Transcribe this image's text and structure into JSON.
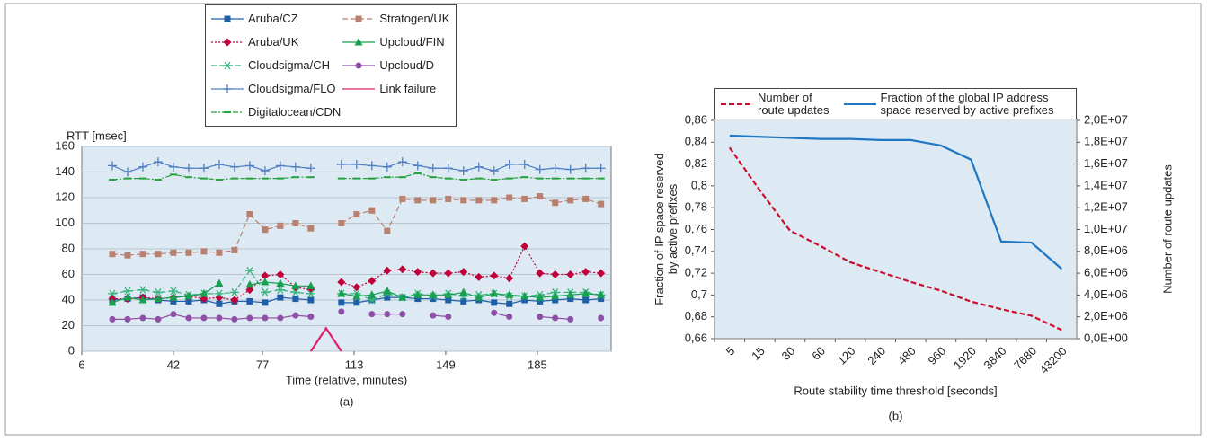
{
  "chart_data": [
    {
      "type": "line",
      "y_label": "RTT [msec]",
      "x_label": "Time (relative, minutes)",
      "caption": "(a)",
      "x": [
        18,
        24,
        30,
        36,
        42,
        48,
        54,
        60,
        66,
        72,
        78,
        84,
        90,
        96,
        102,
        108,
        114,
        120,
        126,
        132,
        138,
        144,
        150,
        156,
        162,
        168,
        174,
        180,
        186,
        192,
        198,
        204,
        210
      ],
      "xlim": [
        6,
        214
      ],
      "xticks": [
        6,
        42,
        77,
        113,
        149,
        185
      ],
      "ylim": [
        0,
        160
      ],
      "yticks": [
        0,
        20,
        40,
        60,
        80,
        100,
        120,
        140,
        160
      ],
      "grid": true,
      "series": [
        {
          "name": "Aruba/CZ",
          "color": "#1f5fa8",
          "marker": "square",
          "dash": "solid",
          "values": [
            40,
            41,
            42,
            40,
            39,
            39,
            40,
            37,
            39,
            39,
            38,
            42,
            41,
            40,
            null,
            38,
            38,
            40,
            42,
            42,
            41,
            41,
            40,
            39,
            40,
            38,
            37,
            40,
            39,
            40,
            41,
            40,
            41
          ]
        },
        {
          "name": "Aruba/UK",
          "color": "#c0003a",
          "marker": "diamond",
          "dash": "dotted",
          "values": [
            41,
            41,
            42,
            41,
            42,
            43,
            41,
            42,
            40,
            48,
            59,
            60,
            50,
            48,
            null,
            54,
            50,
            55,
            63,
            64,
            62,
            61,
            61,
            62,
            58,
            59,
            57,
            82,
            61,
            60,
            60,
            62,
            61
          ]
        },
        {
          "name": "Cloudsigma/CH",
          "color": "#3ab57e",
          "marker": "asterisk",
          "dash": "dashed",
          "values": [
            45,
            47,
            48,
            46,
            47,
            44,
            45,
            45,
            46,
            63,
            46,
            48,
            46,
            45,
            null,
            45,
            45,
            40,
            45,
            42,
            45,
            43,
            45,
            43,
            44,
            45,
            43,
            43,
            44,
            46,
            46,
            46,
            44
          ]
        },
        {
          "name": "Cloudsigma/FLO",
          "color": "#4f7fc0",
          "marker": "plus",
          "dash": "solid",
          "values": [
            145,
            140,
            144,
            148,
            144,
            143,
            143,
            146,
            144,
            145,
            141,
            145,
            144,
            143,
            null,
            146,
            146,
            145,
            144,
            148,
            145,
            143,
            143,
            141,
            144,
            141,
            146,
            146,
            142,
            143,
            142,
            143,
            143
          ]
        },
        {
          "name": "Digitalocean/CDN",
          "color": "#22a23a",
          "marker": "dash",
          "dash": "dashdot",
          "values": [
            134,
            135,
            135,
            134,
            138,
            136,
            135,
            134,
            135,
            135,
            135,
            135,
            136,
            136,
            null,
            135,
            135,
            135,
            136,
            136,
            139,
            136,
            135,
            134,
            135,
            134,
            135,
            136,
            135,
            135,
            135,
            135,
            135
          ]
        },
        {
          "name": "Stratogen/UK",
          "color": "#b98070",
          "marker": "square",
          "dash": "dashed",
          "values": [
            76,
            75,
            76,
            76,
            77,
            77,
            78,
            77,
            79,
            107,
            95,
            98,
            100,
            96,
            null,
            100,
            107,
            110,
            94,
            119,
            118,
            118,
            119,
            118,
            118,
            118,
            120,
            119,
            121,
            116,
            118,
            119,
            115
          ]
        },
        {
          "name": "Upcloud/FIN",
          "color": "#16a050",
          "marker": "triangle",
          "dash": "solid",
          "values": [
            38,
            42,
            40,
            41,
            42,
            43,
            45,
            53,
            null,
            52,
            54,
            53,
            51,
            51,
            null,
            45,
            43,
            44,
            47,
            42,
            44,
            44,
            44,
            46,
            42,
            45,
            44,
            43,
            42,
            43,
            44,
            45,
            44
          ]
        },
        {
          "name": "Upcloud/D",
          "color": "#8e4fa6",
          "marker": "circle",
          "dash": "solid",
          "values": [
            25,
            25,
            26,
            25,
            29,
            26,
            26,
            26,
            25,
            26,
            26,
            26,
            28,
            27,
            null,
            31,
            null,
            29,
            29,
            29,
            null,
            28,
            27,
            null,
            null,
            30,
            27,
            null,
            27,
            26,
            25,
            null,
            26
          ]
        },
        {
          "name": "Link failure",
          "color": "#e0206a",
          "marker": "none",
          "dash": "solid",
          "values": [
            null,
            null,
            null,
            null,
            null,
            null,
            null,
            null,
            null,
            null,
            null,
            null,
            null,
            0,
            18,
            0,
            null,
            null,
            null,
            null,
            null,
            null,
            null,
            null,
            null,
            null,
            null,
            null,
            null,
            null,
            null,
            null,
            null
          ]
        }
      ]
    },
    {
      "type": "line",
      "y_label": "Fraction of IP space reserved\nby active prefixes",
      "y2_label": "Number of route updates",
      "x_label": "Route stability time threshold [seconds]",
      "caption": "(b)",
      "categories": [
        "5",
        "15",
        "30",
        "60",
        "120",
        "240",
        "480",
        "960",
        "1920",
        "3840",
        "7680",
        "43200"
      ],
      "ylim": [
        0.66,
        0.86
      ],
      "yticks": [
        {
          "value": 0.66,
          "label": "0,66"
        },
        {
          "value": 0.68,
          "label": "0,68"
        },
        {
          "value": 0.7,
          "label": "0,7"
        },
        {
          "value": 0.72,
          "label": "0,72"
        },
        {
          "value": 0.74,
          "label": "0,74"
        },
        {
          "value": 0.76,
          "label": "0,76"
        },
        {
          "value": 0.78,
          "label": "0,78"
        },
        {
          "value": 0.8,
          "label": "0,8"
        },
        {
          "value": 0.82,
          "label": "0,82"
        },
        {
          "value": 0.84,
          "label": "0,84"
        },
        {
          "value": 0.86,
          "label": "0,86"
        }
      ],
      "y2lim": [
        0,
        20000000
      ],
      "y2ticks": [
        {
          "value": 0,
          "label": "0,0E+00"
        },
        {
          "value": 2000000,
          "label": "2,0E+06"
        },
        {
          "value": 4000000,
          "label": "4,0E+06"
        },
        {
          "value": 6000000,
          "label": "6,0E+06"
        },
        {
          "value": 8000000,
          "label": "8,0E+06"
        },
        {
          "value": 10000000,
          "label": "1,0E+07"
        },
        {
          "value": 12000000,
          "label": "1,2E+07"
        },
        {
          "value": 14000000,
          "label": "1,4E+07"
        },
        {
          "value": 16000000,
          "label": "1,6E+07"
        },
        {
          "value": 18000000,
          "label": "1,8E+07"
        },
        {
          "value": 20000000,
          "label": "2,0E+07"
        }
      ],
      "grid": false,
      "series": [
        {
          "name": "Number of\nroute updates",
          "color": "#c8102e",
          "dash": "dashed",
          "axis": "y2",
          "values": [
            17500000,
            13600000,
            9900000,
            8500000,
            7000000,
            6100000,
            5200000,
            4400000,
            3400000,
            2700000,
            2100000,
            800000
          ]
        },
        {
          "name": "Fraction of the global IP address\nspace reserved by active prefixes",
          "color": "#1f77c4",
          "dash": "solid",
          "axis": "y",
          "values": [
            0.846,
            0.845,
            0.844,
            0.843,
            0.843,
            0.842,
            0.842,
            0.837,
            0.824,
            0.749,
            0.748,
            0.724
          ]
        }
      ]
    }
  ]
}
